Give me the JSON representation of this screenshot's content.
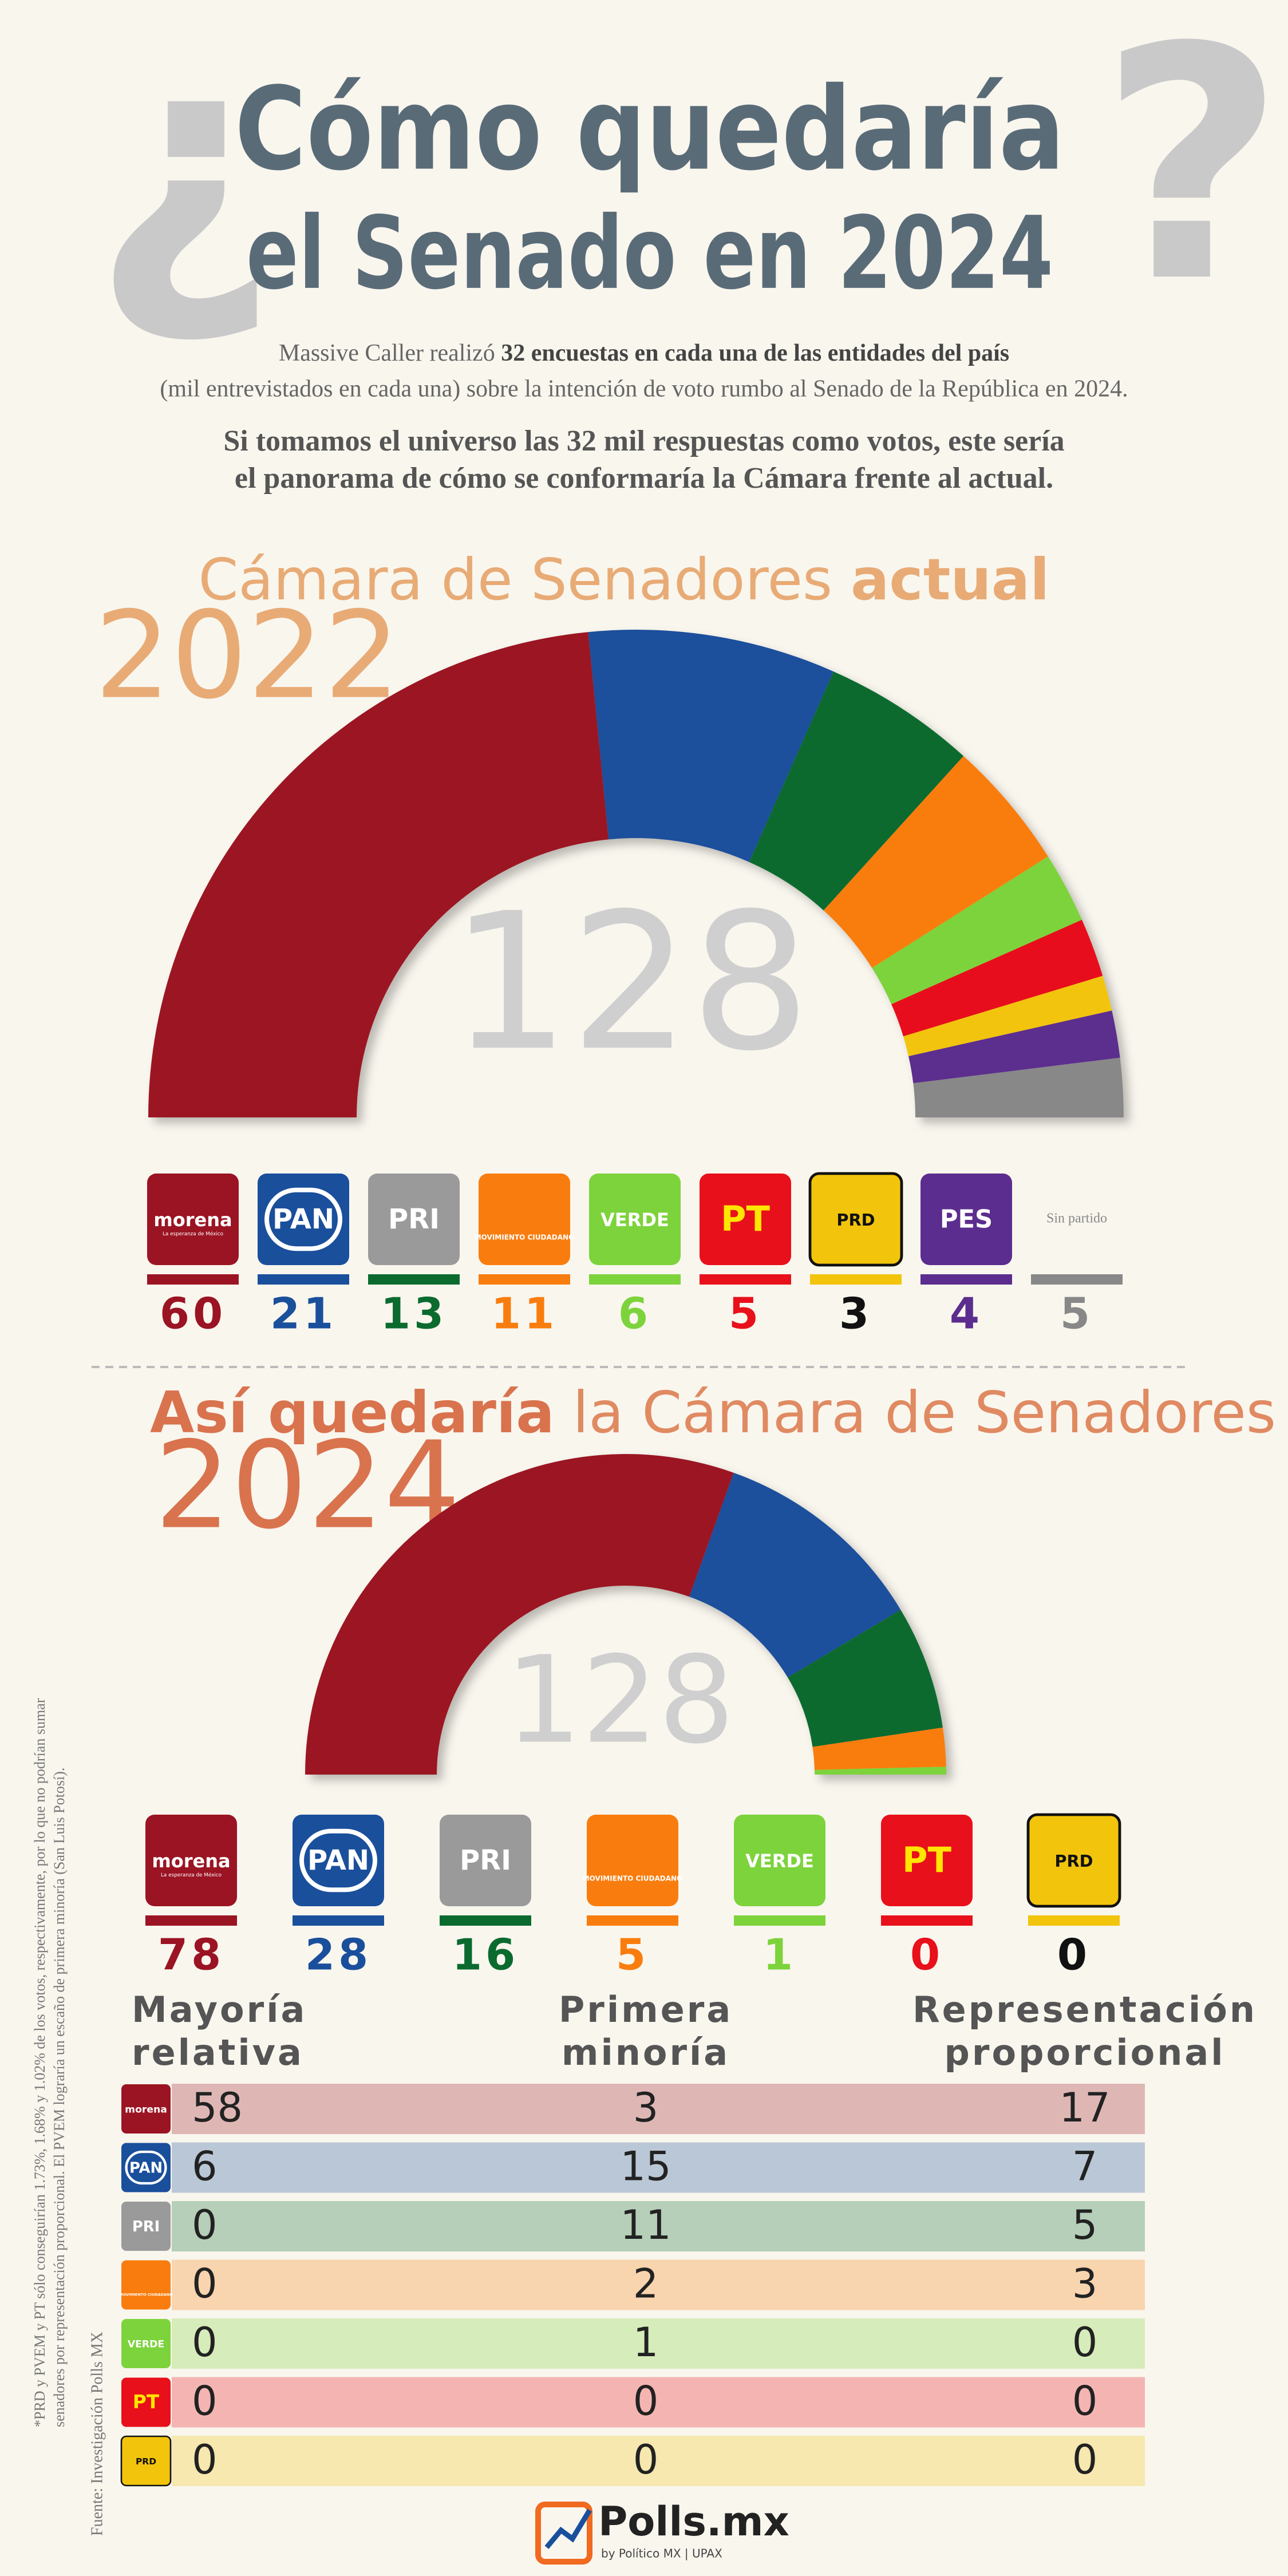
{
  "header": {
    "open_mark": "¿",
    "title_line1": "Cómo quedaría",
    "title_line2": "el Senado en 2024",
    "close_mark": "?",
    "intro": [
      "Massive Caller realizó",
      "32 encuestas en cada una de las entidades del país",
      "(mil entrevistados en cada una) sobre la intención de voto rumbo al Senado de la República en 2024."
    ],
    "lead": [
      "Si tomamos el universo las 32 mil respuestas como votos, este sería",
      "el panorama de cómo se conformaría la Cámara frente al actual."
    ]
  },
  "logos": {
    "morena_tagline": "La esperanza de México"
  },
  "chart_data": [
    {
      "type": "semicircle",
      "title": "Cámara de Senadores",
      "title_emphasis": "actual",
      "year": "2022",
      "total": 128,
      "categories": [
        "morena",
        "PAN",
        "PRI",
        "MOVIMIENTO CIUDADANO",
        "VERDE",
        "PT",
        "PRD",
        "PES",
        "Sin partido"
      ],
      "values": [
        60,
        21,
        13,
        11,
        6,
        5,
        3,
        4,
        5
      ],
      "colors": [
        "#9b1423",
        "#1a4f9c",
        "#0b6b2f",
        "#f97d0e",
        "#7dd33b",
        "#e8101a",
        "#f2c40c",
        "#5b2d8e",
        "#888888"
      ]
    },
    {
      "type": "semicircle",
      "title_emphasis": "Así quedaría",
      "title": "la Cámara de Senadores",
      "year": "2024",
      "total": 128,
      "categories": [
        "morena",
        "PAN",
        "PRI",
        "MOVIMIENTO CIUDADANO",
        "VERDE",
        "PT",
        "PRD"
      ],
      "values": [
        78,
        28,
        16,
        5,
        1,
        0,
        0
      ],
      "colors": [
        "#9b1423",
        "#1a4f9c",
        "#0b6b2f",
        "#f97d0e",
        "#7dd33b",
        "#e8101a",
        "#f2c40c"
      ]
    }
  ],
  "table": {
    "headers": [
      [
        "Mayoría",
        "relativa"
      ],
      [
        "Primera",
        "minoría"
      ],
      [
        "Representación",
        "proporcional"
      ]
    ],
    "rows": [
      [
        58,
        3,
        17
      ],
      [
        6,
        15,
        7
      ],
      [
        0,
        11,
        5
      ],
      [
        0,
        2,
        3
      ],
      [
        0,
        1,
        0
      ],
      [
        0,
        0,
        0
      ],
      [
        0,
        0,
        0
      ]
    ]
  },
  "footnote": [
    "*PRD y PVEM y PT sólo conseguirían 1.73%, 1.68% y 1.02% de los votos, respectivamente, por lo que no podrían sumar",
    "senadores por representación proporcional. El PVEM lograría un escaño de primera minoría (San Luis Potosí)."
  ],
  "source": "Fuente: Investigación Polls MX",
  "footer": {
    "brand": "Polls.mx",
    "byline": "by Político MX | UPAX"
  }
}
